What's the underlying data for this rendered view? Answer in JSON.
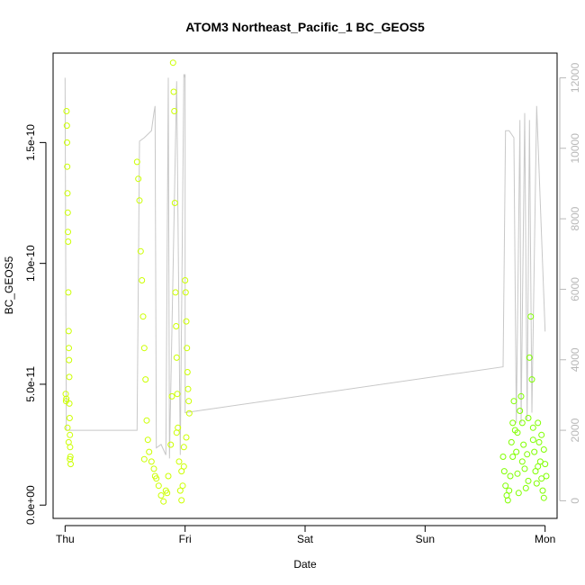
{
  "chart_data": {
    "type": "scatter",
    "title": "ATOM3 Northeast_Pacific_1 BC_GEOS5",
    "xlabel": "Date",
    "ylabel": "BC_GEOS5",
    "x_ticks": [
      "Thu",
      "Fri",
      "Sat",
      "Sun",
      "Mon"
    ],
    "x_range_days": [
      -0.1,
      4.1
    ],
    "y_ticks": [
      "0.0e+00",
      "5.0e-11",
      "1.0e-10",
      "1.5e-10"
    ],
    "ylim": [
      -5.5e-12,
      1.87e-10
    ],
    "y2_ticks": [
      "0",
      "2000",
      "4000",
      "6000",
      "8000",
      "10000",
      "12000"
    ],
    "y2lim": [
      -500,
      12700
    ],
    "grid": false,
    "colors": {
      "scatter_early": "#ccff00",
      "scatter_late": "#80ff00",
      "altitude_line": "#c8c8c8",
      "axis": "#000000",
      "right_axis": "#b8b8b8"
    },
    "series": [
      {
        "points": [
          [
            0.005,
            4.6e-11
          ],
          [
            0.008,
            4.3e-11
          ],
          [
            0.01,
            4.4e-11
          ],
          [
            0.012,
            1.63e-10
          ],
          [
            0.015,
            1.57e-10
          ],
          [
            0.016,
            1.5e-10
          ],
          [
            0.018,
            1.4e-10
          ],
          [
            0.02,
            1.29e-10
          ],
          [
            0.022,
            1.21e-10
          ],
          [
            0.024,
            1.13e-10
          ],
          [
            0.025,
            1.09e-10
          ],
          [
            0.027,
            8.8e-11
          ],
          [
            0.03,
            7.2e-11
          ],
          [
            0.031,
            6.5e-11
          ],
          [
            0.033,
            6e-11
          ],
          [
            0.035,
            5.3e-11
          ],
          [
            0.036,
            4.2e-11
          ],
          [
            0.038,
            3.6e-11
          ],
          [
            0.04,
            2.9e-11
          ],
          [
            0.042,
            2.4e-11
          ],
          [
            0.044,
            2e-11
          ],
          [
            0.046,
            1.7e-11
          ],
          [
            0.02,
            3.2e-11
          ],
          [
            0.03,
            2.6e-11
          ],
          [
            0.04,
            1.9e-11
          ],
          [
            0.6,
            1.42e-10
          ],
          [
            0.61,
            1.35e-10
          ],
          [
            0.62,
            1.26e-10
          ],
          [
            0.63,
            1.05e-10
          ],
          [
            0.64,
            9.3e-11
          ],
          [
            0.65,
            7.8e-11
          ],
          [
            0.66,
            6.5e-11
          ],
          [
            0.67,
            5.2e-11
          ],
          [
            0.68,
            3.5e-11
          ],
          [
            0.69,
            2.7e-11
          ],
          [
            0.7,
            2.2e-11
          ],
          [
            0.72,
            1.8e-11
          ],
          [
            0.74,
            1.5e-11
          ],
          [
            0.76,
            1.1e-11
          ],
          [
            0.78,
            8e-12
          ],
          [
            0.8,
            4e-12
          ],
          [
            0.82,
            1.5e-12
          ],
          [
            0.84,
            6e-12
          ],
          [
            0.86,
            1.2e-11
          ],
          [
            0.88,
            2.5e-11
          ],
          [
            0.89,
            4.5e-11
          ],
          [
            0.9,
            1.83e-10
          ],
          [
            0.905,
            1.71e-10
          ],
          [
            0.91,
            1.63e-10
          ],
          [
            0.915,
            1.25e-10
          ],
          [
            0.92,
            8.8e-11
          ],
          [
            0.925,
            7.4e-11
          ],
          [
            0.93,
            6.1e-11
          ],
          [
            0.935,
            4.6e-11
          ],
          [
            0.94,
            3.2e-11
          ],
          [
            0.95,
            1.8e-11
          ],
          [
            0.96,
            6e-12
          ],
          [
            0.97,
            2e-12
          ],
          [
            0.98,
            8e-12
          ],
          [
            0.99,
            2.4e-11
          ],
          [
            1.0,
            9.3e-11
          ],
          [
            1.005,
            8.8e-11
          ],
          [
            1.01,
            7.6e-11
          ],
          [
            1.015,
            6.5e-11
          ],
          [
            1.02,
            5.5e-11
          ],
          [
            1.025,
            4.8e-11
          ],
          [
            1.03,
            4.3e-11
          ],
          [
            1.035,
            3.8e-11
          ],
          [
            0.97,
            1.4e-11
          ],
          [
            0.93,
            3e-11
          ],
          [
            0.85,
            5e-12
          ],
          [
            0.75,
            1.2e-11
          ],
          [
            0.66,
            1.9e-11
          ],
          [
            0.99,
            1.6e-11
          ],
          [
            1.01,
            2.8e-11
          ]
        ],
        "color": "#ccff00"
      },
      {
        "points": [
          [
            3.65,
            2e-11
          ],
          [
            3.66,
            1.4e-11
          ],
          [
            3.67,
            8e-12
          ],
          [
            3.68,
            4e-12
          ],
          [
            3.69,
            2e-12
          ],
          [
            3.7,
            6e-12
          ],
          [
            3.71,
            1.2e-11
          ],
          [
            3.72,
            2.6e-11
          ],
          [
            3.73,
            3.4e-11
          ],
          [
            3.74,
            4.3e-11
          ],
          [
            3.75,
            3.1e-11
          ],
          [
            3.76,
            2.2e-11
          ],
          [
            3.77,
            1.3e-11
          ],
          [
            3.78,
            5e-12
          ],
          [
            3.79,
            3.9e-11
          ],
          [
            3.8,
            4.5e-11
          ],
          [
            3.81,
            3.4e-11
          ],
          [
            3.82,
            2.5e-11
          ],
          [
            3.83,
            1.5e-11
          ],
          [
            3.84,
            7e-12
          ],
          [
            3.85,
            2.1e-11
          ],
          [
            3.86,
            3.6e-11
          ],
          [
            3.87,
            6.1e-11
          ],
          [
            3.88,
            7.8e-11
          ],
          [
            3.89,
            5.2e-11
          ],
          [
            3.9,
            3.2e-11
          ],
          [
            3.91,
            2.2e-11
          ],
          [
            3.92,
            1.4e-11
          ],
          [
            3.93,
            9e-12
          ],
          [
            3.94,
            3.4e-11
          ],
          [
            3.95,
            2.6e-11
          ],
          [
            3.96,
            1.8e-11
          ],
          [
            3.97,
            1.1e-11
          ],
          [
            3.98,
            6e-12
          ],
          [
            3.99,
            3e-12
          ],
          [
            4.0,
            1.7e-11
          ],
          [
            4.01,
            1.2e-11
          ],
          [
            3.73,
            2e-11
          ],
          [
            3.77,
            3e-11
          ],
          [
            3.81,
            1.8e-11
          ],
          [
            3.86,
            1e-11
          ],
          [
            3.9,
            2.7e-11
          ],
          [
            3.94,
            1.6e-11
          ],
          [
            3.97,
            2.9e-11
          ],
          [
            3.99,
            2.3e-11
          ]
        ],
        "color": "#80ff00"
      },
      {
        "y_axis": "right",
        "points": [
          [
            0.0,
            12000
          ],
          [
            0.01,
            2000
          ],
          [
            0.4,
            2000
          ],
          [
            0.6,
            2000
          ],
          [
            0.62,
            10200
          ],
          [
            0.66,
            10300
          ],
          [
            0.72,
            10500
          ],
          [
            0.74,
            11000
          ],
          [
            0.75,
            11200
          ],
          [
            0.76,
            1500
          ],
          [
            0.8,
            1600
          ],
          [
            0.84,
            1300
          ],
          [
            0.86,
            12000
          ],
          [
            0.87,
            1200
          ],
          [
            0.93,
            11900
          ],
          [
            0.96,
            1300
          ],
          [
            0.99,
            12100
          ],
          [
            1.0,
            12000
          ],
          [
            1.0,
            12100
          ],
          [
            1.0,
            2500
          ],
          [
            3.65,
            3800
          ],
          [
            3.67,
            10500
          ],
          [
            3.7,
            10500
          ],
          [
            3.74,
            10300
          ],
          [
            3.76,
            2200
          ],
          [
            3.79,
            10800
          ],
          [
            3.8,
            2200
          ],
          [
            3.83,
            11000
          ],
          [
            3.85,
            2300
          ],
          [
            3.87,
            10800
          ],
          [
            3.89,
            2500
          ],
          [
            3.93,
            11200
          ],
          [
            4.0,
            4800
          ]
        ],
        "color": "#c8c8c8"
      }
    ]
  }
}
